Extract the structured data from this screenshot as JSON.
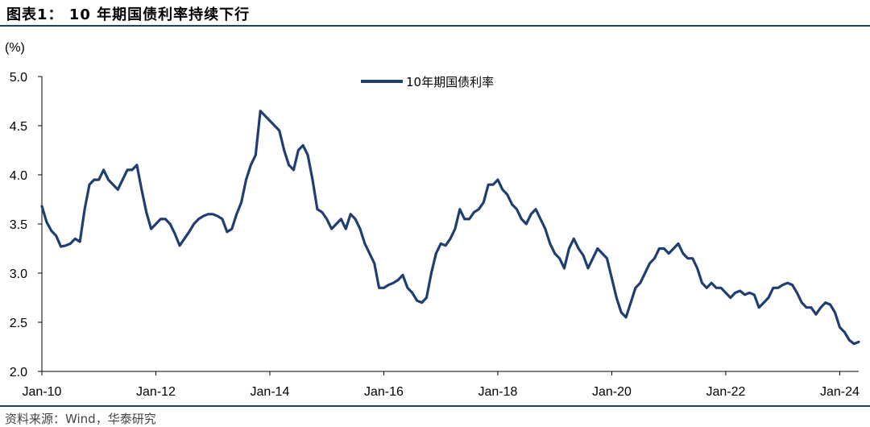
{
  "header": {
    "title": "图表1：  10 年期国债利率持续下行"
  },
  "footer": {
    "source": "资料来源：Wind，华泰研究"
  },
  "chart_data": {
    "type": "line",
    "ylabel": "(%)",
    "ylim": [
      2.0,
      5.0
    ],
    "y_ticks": [
      "5.0",
      "4.5",
      "4.0",
      "3.5",
      "3.0",
      "2.5",
      "2.0"
    ],
    "x_ticks": [
      "Jan-10",
      "Jan-12",
      "Jan-14",
      "Jan-16",
      "Jan-18",
      "Jan-20",
      "Jan-22",
      "Jan-24"
    ],
    "x_range": [
      "2010-01",
      "2024-05"
    ],
    "legend_placement": "top-center",
    "grid": false,
    "colors": {
      "line": "#1f3e72",
      "axis": "#000000"
    },
    "series": [
      {
        "name": "10年期国债利率",
        "x": [
          "2010-01",
          "2010-02",
          "2010-03",
          "2010-04",
          "2010-05",
          "2010-06",
          "2010-07",
          "2010-08",
          "2010-09",
          "2010-10",
          "2010-11",
          "2010-12",
          "2011-01",
          "2011-02",
          "2011-03",
          "2011-04",
          "2011-05",
          "2011-06",
          "2011-07",
          "2011-08",
          "2011-09",
          "2011-10",
          "2011-11",
          "2011-12",
          "2012-01",
          "2012-02",
          "2012-03",
          "2012-04",
          "2012-05",
          "2012-06",
          "2012-07",
          "2012-08",
          "2012-09",
          "2012-10",
          "2012-11",
          "2012-12",
          "2013-01",
          "2013-02",
          "2013-03",
          "2013-04",
          "2013-05",
          "2013-06",
          "2013-07",
          "2013-08",
          "2013-09",
          "2013-10",
          "2013-11",
          "2013-12",
          "2014-01",
          "2014-02",
          "2014-03",
          "2014-04",
          "2014-05",
          "2014-06",
          "2014-07",
          "2014-08",
          "2014-09",
          "2014-10",
          "2014-11",
          "2014-12",
          "2015-01",
          "2015-02",
          "2015-03",
          "2015-04",
          "2015-05",
          "2015-06",
          "2015-07",
          "2015-08",
          "2015-09",
          "2015-10",
          "2015-11",
          "2015-12",
          "2016-01",
          "2016-02",
          "2016-03",
          "2016-04",
          "2016-05",
          "2016-06",
          "2016-07",
          "2016-08",
          "2016-09",
          "2016-10",
          "2016-11",
          "2016-12",
          "2017-01",
          "2017-02",
          "2017-03",
          "2017-04",
          "2017-05",
          "2017-06",
          "2017-07",
          "2017-08",
          "2017-09",
          "2017-10",
          "2017-11",
          "2017-12",
          "2018-01",
          "2018-02",
          "2018-03",
          "2018-04",
          "2018-05",
          "2018-06",
          "2018-07",
          "2018-08",
          "2018-09",
          "2018-10",
          "2018-11",
          "2018-12",
          "2019-01",
          "2019-02",
          "2019-03",
          "2019-04",
          "2019-05",
          "2019-06",
          "2019-07",
          "2019-08",
          "2019-09",
          "2019-10",
          "2019-11",
          "2019-12",
          "2020-01",
          "2020-02",
          "2020-03",
          "2020-04",
          "2020-05",
          "2020-06",
          "2020-07",
          "2020-08",
          "2020-09",
          "2020-10",
          "2020-11",
          "2020-12",
          "2021-01",
          "2021-02",
          "2021-03",
          "2021-04",
          "2021-05",
          "2021-06",
          "2021-07",
          "2021-08",
          "2021-09",
          "2021-10",
          "2021-11",
          "2021-12",
          "2022-01",
          "2022-02",
          "2022-03",
          "2022-04",
          "2022-05",
          "2022-06",
          "2022-07",
          "2022-08",
          "2022-09",
          "2022-10",
          "2022-11",
          "2022-12",
          "2023-01",
          "2023-02",
          "2023-03",
          "2023-04",
          "2023-05",
          "2023-06",
          "2023-07",
          "2023-08",
          "2023-09",
          "2023-10",
          "2023-11",
          "2023-12",
          "2024-01",
          "2024-02",
          "2024-03",
          "2024-04",
          "2024-05"
        ],
        "values": [
          3.68,
          3.52,
          3.43,
          3.38,
          3.27,
          3.28,
          3.3,
          3.35,
          3.32,
          3.65,
          3.9,
          3.95,
          3.95,
          4.05,
          3.95,
          3.9,
          3.85,
          3.95,
          4.05,
          4.05,
          4.1,
          3.85,
          3.62,
          3.45,
          3.5,
          3.55,
          3.55,
          3.5,
          3.4,
          3.28,
          3.35,
          3.42,
          3.5,
          3.55,
          3.58,
          3.6,
          3.6,
          3.58,
          3.55,
          3.42,
          3.45,
          3.6,
          3.72,
          3.95,
          4.1,
          4.2,
          4.65,
          4.6,
          4.55,
          4.5,
          4.45,
          4.25,
          4.1,
          4.05,
          4.25,
          4.3,
          4.2,
          3.95,
          3.65,
          3.62,
          3.55,
          3.45,
          3.5,
          3.55,
          3.45,
          3.6,
          3.55,
          3.45,
          3.3,
          3.2,
          3.1,
          2.85,
          2.85,
          2.88,
          2.9,
          2.93,
          2.98,
          2.85,
          2.8,
          2.72,
          2.7,
          2.75,
          3.0,
          3.2,
          3.3,
          3.28,
          3.35,
          3.45,
          3.65,
          3.55,
          3.55,
          3.62,
          3.65,
          3.72,
          3.9,
          3.9,
          3.95,
          3.85,
          3.8,
          3.7,
          3.65,
          3.55,
          3.5,
          3.6,
          3.65,
          3.55,
          3.45,
          3.3,
          3.2,
          3.15,
          3.05,
          3.25,
          3.35,
          3.25,
          3.18,
          3.05,
          3.15,
          3.25,
          3.2,
          3.15,
          2.95,
          2.75,
          2.6,
          2.55,
          2.7,
          2.85,
          2.9,
          3.0,
          3.1,
          3.15,
          3.25,
          3.25,
          3.2,
          3.25,
          3.3,
          3.2,
          3.15,
          3.15,
          3.05,
          2.9,
          2.85,
          2.9,
          2.85,
          2.85,
          2.8,
          2.75,
          2.8,
          2.82,
          2.78,
          2.8,
          2.78,
          2.65,
          2.7,
          2.75,
          2.85,
          2.85,
          2.88,
          2.9,
          2.88,
          2.8,
          2.7,
          2.65,
          2.65,
          2.58,
          2.65,
          2.7,
          2.68,
          2.6,
          2.45,
          2.4,
          2.32,
          2.28,
          2.3
        ]
      }
    ]
  }
}
